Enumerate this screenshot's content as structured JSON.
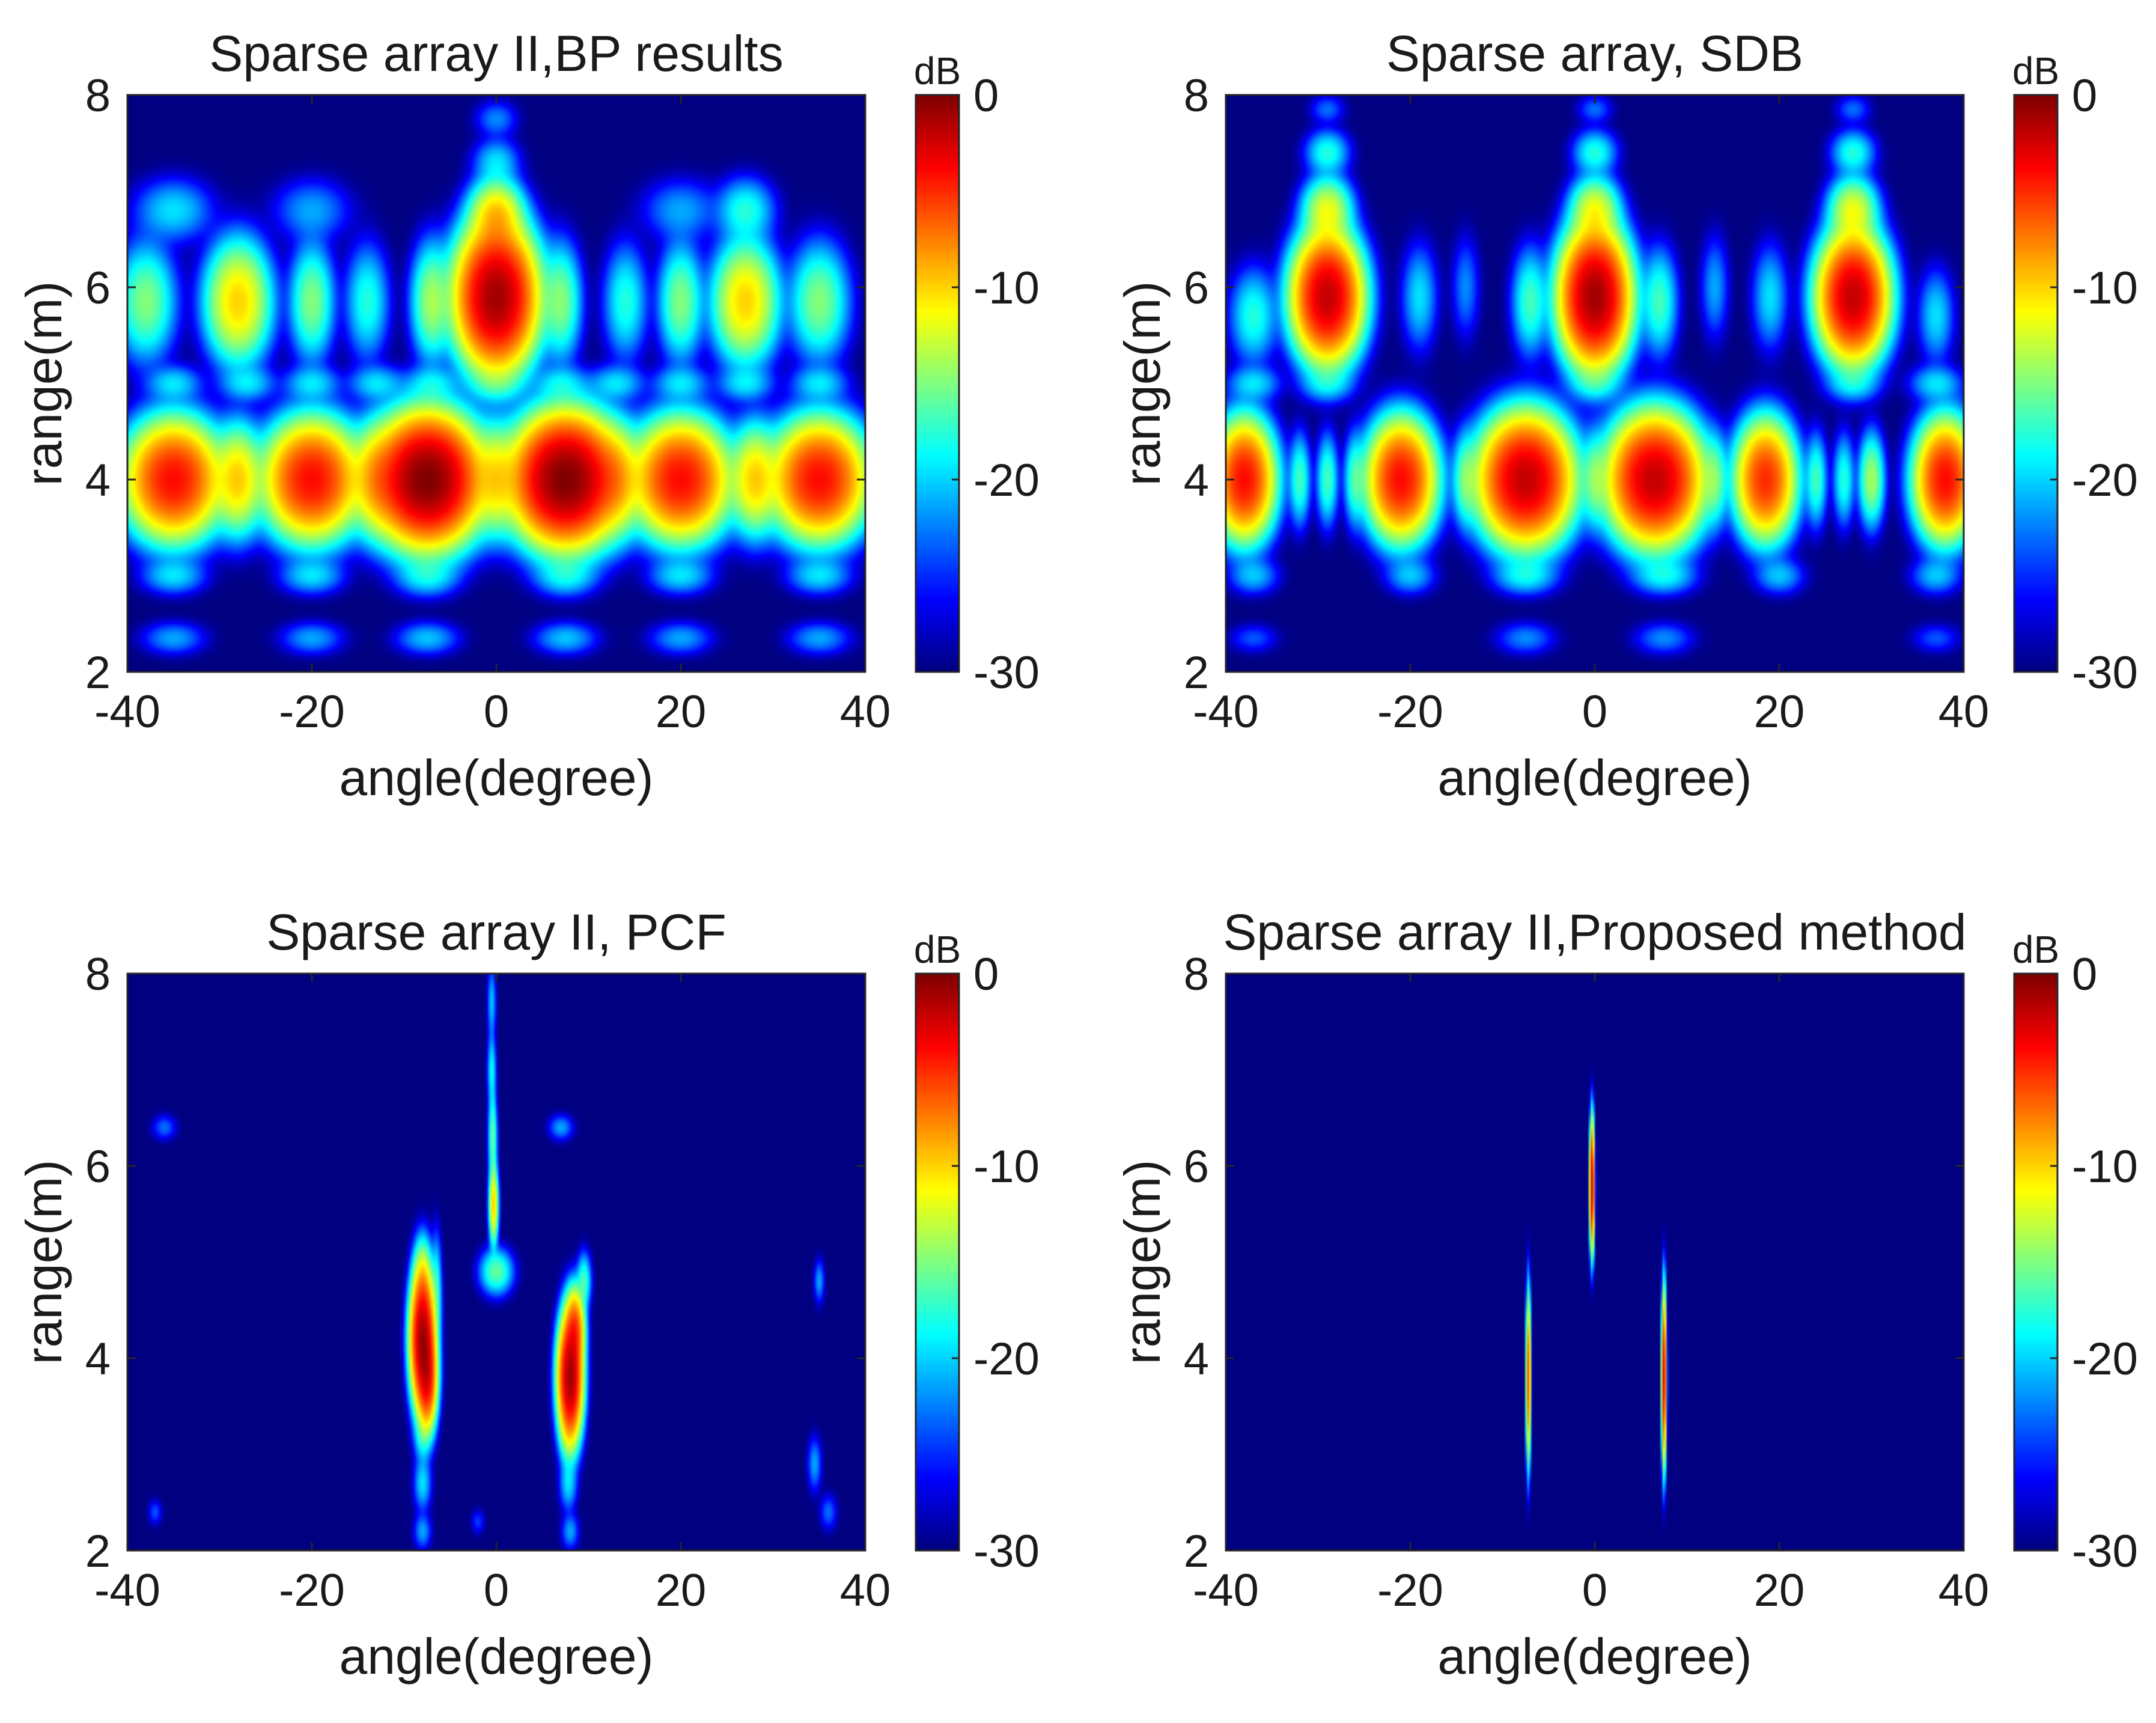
{
  "chart_data": [
    {
      "type": "heatmap",
      "title": "Sparse array II,BP results",
      "xlabel": "angle(degree)",
      "ylabel": "range(m)",
      "xlim": [
        -40,
        40
      ],
      "ylim": [
        2,
        8
      ],
      "xticks": [
        "-40",
        "-20",
        "0",
        "20",
        "40"
      ],
      "yticks": [
        "2",
        "4",
        "6",
        "8"
      ],
      "colorbar": {
        "label": "dB",
        "range": [
          -30,
          0
        ],
        "ticks": [
          "0",
          "-10",
          "-20",
          "-30"
        ],
        "colormap": "jet"
      },
      "background_db": -30,
      "spots": [
        {
          "x": -35,
          "y": 4.0,
          "db": -4,
          "sx": 2.4,
          "sy": 0.28
        },
        {
          "x": -28,
          "y": 4.0,
          "db": -10,
          "sx": 1.3,
          "sy": 0.27
        },
        {
          "x": -20,
          "y": 4.0,
          "db": -4,
          "sx": 2.4,
          "sy": 0.28
        },
        {
          "x": -13,
          "y": 4.0,
          "db": -10,
          "sx": 1.3,
          "sy": 0.27
        },
        {
          "x": -7.5,
          "y": 4.0,
          "db": 0,
          "sx": 2.6,
          "sy": 0.3
        },
        {
          "x": 0,
          "y": 4.0,
          "db": -11,
          "sx": 1.3,
          "sy": 0.27
        },
        {
          "x": 7.5,
          "y": 4.0,
          "db": 0,
          "sx": 2.6,
          "sy": 0.3
        },
        {
          "x": 13,
          "y": 4.0,
          "db": -10,
          "sx": 1.3,
          "sy": 0.27
        },
        {
          "x": 20,
          "y": 4.0,
          "db": -4,
          "sx": 2.4,
          "sy": 0.28
        },
        {
          "x": 28,
          "y": 4.0,
          "db": -10,
          "sx": 1.3,
          "sy": 0.27
        },
        {
          "x": 35,
          "y": 4.0,
          "db": -4,
          "sx": 2.4,
          "sy": 0.28
        },
        {
          "x": -38,
          "y": 5.85,
          "db": -15,
          "sx": 1.6,
          "sy": 0.3
        },
        {
          "x": -28,
          "y": 5.85,
          "db": -10,
          "sx": 1.7,
          "sy": 0.3
        },
        {
          "x": -20,
          "y": 5.85,
          "db": -15,
          "sx": 1.2,
          "sy": 0.3
        },
        {
          "x": -14,
          "y": 5.85,
          "db": -18,
          "sx": 1.2,
          "sy": 0.3
        },
        {
          "x": -7,
          "y": 5.85,
          "db": -14,
          "sx": 1.1,
          "sy": 0.3
        },
        {
          "x": 0,
          "y": 5.9,
          "db": -1,
          "sx": 2.0,
          "sy": 0.34
        },
        {
          "x": 7,
          "y": 5.85,
          "db": -15,
          "sx": 1.1,
          "sy": 0.3
        },
        {
          "x": 14,
          "y": 5.85,
          "db": -18,
          "sx": 1.2,
          "sy": 0.3
        },
        {
          "x": 20,
          "y": 5.85,
          "db": -15,
          "sx": 1.2,
          "sy": 0.3
        },
        {
          "x": 27,
          "y": 5.85,
          "db": -10,
          "sx": 1.7,
          "sy": 0.3
        },
        {
          "x": 35,
          "y": 5.85,
          "db": -15,
          "sx": 1.6,
          "sy": 0.3
        },
        {
          "x": 0,
          "y": 6.75,
          "db": -10,
          "sx": 1.4,
          "sy": 0.18
        },
        {
          "x": -35,
          "y": 6.8,
          "db": -20,
          "sx": 2.2,
          "sy": 0.17
        },
        {
          "x": -20,
          "y": 6.8,
          "db": -22,
          "sx": 2.2,
          "sy": 0.17
        },
        {
          "x": 20,
          "y": 6.8,
          "db": -22,
          "sx": 2.2,
          "sy": 0.17
        },
        {
          "x": 27,
          "y": 6.8,
          "db": -18,
          "sx": 1.6,
          "sy": 0.17
        },
        {
          "x": 0,
          "y": 7.3,
          "db": -20,
          "sx": 1.3,
          "sy": 0.13
        },
        {
          "x": 0,
          "y": 7.75,
          "db": -23,
          "sx": 1.2,
          "sy": 0.1
        },
        {
          "x": -35,
          "y": 5.0,
          "db": -20,
          "sx": 1.6,
          "sy": 0.1
        },
        {
          "x": -27,
          "y": 5.0,
          "db": -20,
          "sx": 1.6,
          "sy": 0.1
        },
        {
          "x": -20,
          "y": 5.0,
          "db": -20,
          "sx": 1.6,
          "sy": 0.1
        },
        {
          "x": -13,
          "y": 5.0,
          "db": -20,
          "sx": 1.6,
          "sy": 0.1
        },
        {
          "x": -7,
          "y": 5.0,
          "db": -20,
          "sx": 1.6,
          "sy": 0.1
        },
        {
          "x": 0,
          "y": 5.0,
          "db": -20,
          "sx": 1.6,
          "sy": 0.1
        },
        {
          "x": 7,
          "y": 5.0,
          "db": -20,
          "sx": 1.6,
          "sy": 0.1
        },
        {
          "x": 13,
          "y": 5.0,
          "db": -20,
          "sx": 1.6,
          "sy": 0.1
        },
        {
          "x": 20,
          "y": 5.0,
          "db": -20,
          "sx": 1.6,
          "sy": 0.1
        },
        {
          "x": 27,
          "y": 5.0,
          "db": -20,
          "sx": 1.6,
          "sy": 0.1
        },
        {
          "x": 35,
          "y": 5.0,
          "db": -20,
          "sx": 1.6,
          "sy": 0.1
        },
        {
          "x": -35,
          "y": 3.0,
          "db": -20,
          "sx": 1.8,
          "sy": 0.1
        },
        {
          "x": -20,
          "y": 3.0,
          "db": -20,
          "sx": 1.8,
          "sy": 0.1
        },
        {
          "x": -7.5,
          "y": 3.0,
          "db": -19,
          "sx": 1.8,
          "sy": 0.11
        },
        {
          "x": 7.5,
          "y": 3.0,
          "db": -19,
          "sx": 1.8,
          "sy": 0.11
        },
        {
          "x": 20,
          "y": 3.0,
          "db": -20,
          "sx": 1.8,
          "sy": 0.1
        },
        {
          "x": 35,
          "y": 3.0,
          "db": -20,
          "sx": 1.8,
          "sy": 0.1
        },
        {
          "x": -35,
          "y": 2.35,
          "db": -22,
          "sx": 1.8,
          "sy": 0.09
        },
        {
          "x": -20,
          "y": 2.35,
          "db": -22,
          "sx": 1.8,
          "sy": 0.09
        },
        {
          "x": -7.5,
          "y": 2.35,
          "db": -21,
          "sx": 1.8,
          "sy": 0.09
        },
        {
          "x": 7.5,
          "y": 2.35,
          "db": -21,
          "sx": 1.8,
          "sy": 0.09
        },
        {
          "x": 20,
          "y": 2.35,
          "db": -22,
          "sx": 1.8,
          "sy": 0.09
        },
        {
          "x": 35,
          "y": 2.35,
          "db": -22,
          "sx": 1.8,
          "sy": 0.09
        }
      ]
    },
    {
      "type": "heatmap",
      "title": "Sparse array, SDB",
      "xlabel": "angle(degree)",
      "ylabel": "range(m)",
      "xlim": [
        -40,
        40
      ],
      "ylim": [
        2,
        8
      ],
      "xticks": [
        "-40",
        "-20",
        "0",
        "20",
        "40"
      ],
      "yticks": [
        "2",
        "4",
        "6",
        "8"
      ],
      "colorbar": {
        "label": "dB",
        "range": [
          -30,
          0
        ],
        "ticks": [
          "0",
          "-10",
          "-20",
          "-30"
        ],
        "colormap": "jet"
      },
      "background_db": -30,
      "spots": [
        {
          "x": -38,
          "y": 4.0,
          "db": -4,
          "sx": 1.5,
          "sy": 0.28
        },
        {
          "x": -21,
          "y": 4.0,
          "db": -4,
          "sx": 1.7,
          "sy": 0.28
        },
        {
          "x": -7.5,
          "y": 4.0,
          "db": -2,
          "sx": 2.3,
          "sy": 0.3
        },
        {
          "x": 6.5,
          "y": 4.0,
          "db": -2,
          "sx": 2.3,
          "sy": 0.3
        },
        {
          "x": 18.5,
          "y": 4.0,
          "db": -5,
          "sx": 1.5,
          "sy": 0.28
        },
        {
          "x": 38,
          "y": 4.0,
          "db": -4,
          "sx": 1.5,
          "sy": 0.28
        },
        {
          "x": -32,
          "y": 4.0,
          "db": -17,
          "sx": 0.6,
          "sy": 0.24
        },
        {
          "x": -29,
          "y": 4.0,
          "db": -17,
          "sx": 0.6,
          "sy": 0.24
        },
        {
          "x": -26,
          "y": 4.0,
          "db": -17,
          "sx": 0.6,
          "sy": 0.24
        },
        {
          "x": -14,
          "y": 4.0,
          "db": -16,
          "sx": 0.7,
          "sy": 0.24
        },
        {
          "x": 0,
          "y": 4.0,
          "db": -16,
          "sx": 0.7,
          "sy": 0.24
        },
        {
          "x": 13,
          "y": 4.0,
          "db": -16,
          "sx": 0.7,
          "sy": 0.24
        },
        {
          "x": 24,
          "y": 4.0,
          "db": -17,
          "sx": 0.6,
          "sy": 0.24
        },
        {
          "x": 27,
          "y": 4.0,
          "db": -18,
          "sx": 0.6,
          "sy": 0.24
        },
        {
          "x": 30,
          "y": 4.0,
          "db": -14,
          "sx": 0.7,
          "sy": 0.24
        },
        {
          "x": -29,
          "y": 5.9,
          "db": -2,
          "sx": 1.7,
          "sy": 0.3
        },
        {
          "x": 0,
          "y": 5.9,
          "db": -1,
          "sx": 1.7,
          "sy": 0.32
        },
        {
          "x": 28,
          "y": 5.9,
          "db": -2,
          "sx": 1.7,
          "sy": 0.3
        },
        {
          "x": -37,
          "y": 5.7,
          "db": -18,
          "sx": 1.3,
          "sy": 0.25
        },
        {
          "x": -19,
          "y": 5.9,
          "db": -20,
          "sx": 1.0,
          "sy": 0.28
        },
        {
          "x": -14,
          "y": 6.0,
          "db": -23,
          "sx": 0.8,
          "sy": 0.28
        },
        {
          "x": -7,
          "y": 5.85,
          "db": -17,
          "sx": 1.0,
          "sy": 0.28
        },
        {
          "x": 7,
          "y": 5.85,
          "db": -17,
          "sx": 1.0,
          "sy": 0.28
        },
        {
          "x": 13,
          "y": 6.0,
          "db": -22,
          "sx": 0.8,
          "sy": 0.28
        },
        {
          "x": 19,
          "y": 5.9,
          "db": -20,
          "sx": 1.0,
          "sy": 0.28
        },
        {
          "x": 37,
          "y": 5.7,
          "db": -20,
          "sx": 1.0,
          "sy": 0.25
        },
        {
          "x": -29,
          "y": 6.8,
          "db": -12,
          "sx": 1.3,
          "sy": 0.17
        },
        {
          "x": 0,
          "y": 6.8,
          "db": -12,
          "sx": 1.3,
          "sy": 0.17
        },
        {
          "x": 28,
          "y": 6.8,
          "db": -12,
          "sx": 1.3,
          "sy": 0.17
        },
        {
          "x": -29,
          "y": 7.4,
          "db": -18,
          "sx": 1.2,
          "sy": 0.12
        },
        {
          "x": 0,
          "y": 7.4,
          "db": -18,
          "sx": 1.2,
          "sy": 0.12
        },
        {
          "x": 28,
          "y": 7.4,
          "db": -18,
          "sx": 1.2,
          "sy": 0.12
        },
        {
          "x": -29,
          "y": 7.85,
          "db": -24,
          "sx": 1.0,
          "sy": 0.08
        },
        {
          "x": 0,
          "y": 7.85,
          "db": -24,
          "sx": 1.0,
          "sy": 0.08
        },
        {
          "x": 28,
          "y": 7.85,
          "db": -24,
          "sx": 1.0,
          "sy": 0.08
        },
        {
          "x": -37,
          "y": 5.0,
          "db": -20,
          "sx": 1.5,
          "sy": 0.1
        },
        {
          "x": -29,
          "y": 5.0,
          "db": -20,
          "sx": 1.5,
          "sy": 0.1
        },
        {
          "x": 0,
          "y": 5.0,
          "db": -20,
          "sx": 1.5,
          "sy": 0.1
        },
        {
          "x": 28,
          "y": 5.0,
          "db": -20,
          "sx": 1.5,
          "sy": 0.1
        },
        {
          "x": 37,
          "y": 5.0,
          "db": -20,
          "sx": 1.5,
          "sy": 0.1
        },
        {
          "x": -37,
          "y": 3.0,
          "db": -21,
          "sx": 1.4,
          "sy": 0.1
        },
        {
          "x": -20,
          "y": 3.0,
          "db": -21,
          "sx": 1.4,
          "sy": 0.1
        },
        {
          "x": -7.5,
          "y": 3.0,
          "db": -19,
          "sx": 1.8,
          "sy": 0.1
        },
        {
          "x": 7.5,
          "y": 3.0,
          "db": -19,
          "sx": 1.8,
          "sy": 0.1
        },
        {
          "x": 20,
          "y": 3.0,
          "db": -21,
          "sx": 1.4,
          "sy": 0.1
        },
        {
          "x": 37,
          "y": 3.0,
          "db": -21,
          "sx": 1.4,
          "sy": 0.1
        },
        {
          "x": -7.5,
          "y": 2.35,
          "db": -23,
          "sx": 1.7,
          "sy": 0.09
        },
        {
          "x": 7.5,
          "y": 2.35,
          "db": -23,
          "sx": 1.7,
          "sy": 0.09
        },
        {
          "x": -37,
          "y": 2.35,
          "db": -25,
          "sx": 1.4,
          "sy": 0.08
        },
        {
          "x": 37,
          "y": 2.35,
          "db": -25,
          "sx": 1.4,
          "sy": 0.08
        }
      ]
    },
    {
      "type": "heatmap",
      "title": "Sparse array II, PCF",
      "xlabel": "angle(degree)",
      "ylabel": "range(m)",
      "xlim": [
        -40,
        40
      ],
      "ylim": [
        2,
        8
      ],
      "xticks": [
        "-40",
        "-20",
        "0",
        "20",
        "40"
      ],
      "yticks": [
        "2",
        "4",
        "6",
        "8"
      ],
      "colorbar": {
        "label": "dB",
        "range": [
          -30,
          0
        ],
        "ticks": [
          "0",
          "-10",
          "-20",
          "-30"
        ],
        "colormap": "jet"
      },
      "background_db": -30,
      "spots": [
        {
          "x": -8,
          "y": 4.2,
          "db": -1,
          "sx": 0.6,
          "sy": 0.32
        },
        {
          "x": -7.5,
          "y": 3.8,
          "db": -4,
          "sx": 0.5,
          "sy": 0.25
        },
        {
          "x": -8,
          "y": 4.8,
          "db": -13,
          "sx": 0.5,
          "sy": 0.22
        },
        {
          "x": -6.5,
          "y": 4.7,
          "db": -18,
          "sx": 0.3,
          "sy": 0.3
        },
        {
          "x": -8,
          "y": 3.2,
          "db": -19,
          "sx": 0.5,
          "sy": 0.15
        },
        {
          "x": -8,
          "y": 2.7,
          "db": -20,
          "sx": 0.5,
          "sy": 0.15
        },
        {
          "x": -8,
          "y": 2.2,
          "db": -22,
          "sx": 0.5,
          "sy": 0.1
        },
        {
          "x": 8,
          "y": 3.8,
          "db": -1,
          "sx": 0.6,
          "sy": 0.3
        },
        {
          "x": 8.5,
          "y": 4.3,
          "db": -6,
          "sx": 0.5,
          "sy": 0.2
        },
        {
          "x": 9.5,
          "y": 4.8,
          "db": -17,
          "sx": 0.4,
          "sy": 0.15
        },
        {
          "x": 7.8,
          "y": 3.2,
          "db": -19,
          "sx": 0.5,
          "sy": 0.15
        },
        {
          "x": 7.8,
          "y": 2.7,
          "db": -20,
          "sx": 0.5,
          "sy": 0.15
        },
        {
          "x": 8,
          "y": 2.2,
          "db": -22,
          "sx": 0.5,
          "sy": 0.1
        },
        {
          "x": 7,
          "y": 6.4,
          "db": -22,
          "sx": 0.7,
          "sy": 0.07
        },
        {
          "x": 0,
          "y": 4.9,
          "db": -16,
          "sx": 0.9,
          "sy": 0.12
        },
        {
          "x": -0.3,
          "y": 5.6,
          "db": -10,
          "sx": 0.25,
          "sy": 0.2
        },
        {
          "x": -0.4,
          "y": 6.3,
          "db": -16,
          "sx": 0.25,
          "sy": 0.25
        },
        {
          "x": -0.5,
          "y": 7.0,
          "db": -19,
          "sx": 0.25,
          "sy": 0.2
        },
        {
          "x": -0.5,
          "y": 7.7,
          "db": -21,
          "sx": 0.25,
          "sy": 0.2
        },
        {
          "x": -36,
          "y": 6.4,
          "db": -24,
          "sx": 0.7,
          "sy": 0.07
        },
        {
          "x": -37,
          "y": 2.4,
          "db": -25,
          "sx": 0.4,
          "sy": 0.07
        },
        {
          "x": -2,
          "y": 2.3,
          "db": -26,
          "sx": 0.4,
          "sy": 0.07
        },
        {
          "x": 35,
          "y": 4.8,
          "db": -22,
          "sx": 0.3,
          "sy": 0.12
        },
        {
          "x": 34.5,
          "y": 2.9,
          "db": -22,
          "sx": 0.4,
          "sy": 0.15
        },
        {
          "x": 36,
          "y": 2.4,
          "db": -24,
          "sx": 0.5,
          "sy": 0.1
        }
      ]
    },
    {
      "type": "heatmap",
      "title": "Sparse array II,Proposed method",
      "xlabel": "angle(degree)",
      "ylabel": "range(m)",
      "xlim": [
        -40,
        40
      ],
      "ylim": [
        2,
        8
      ],
      "xticks": [
        "-40",
        "-20",
        "0",
        "20",
        "40"
      ],
      "yticks": [
        "2",
        "4",
        "6",
        "8"
      ],
      "colorbar": {
        "label": "dB",
        "range": [
          -30,
          0
        ],
        "ticks": [
          "0",
          "-10",
          "-20",
          "-30"
        ],
        "colormap": "jet"
      },
      "background_db": -30,
      "spots": [
        {
          "x": -0.3,
          "y": 5.8,
          "db": -2,
          "sx": 0.12,
          "sy": 0.3
        },
        {
          "x": -7.2,
          "y": 3.8,
          "db": -6,
          "sx": 0.12,
          "sy": 0.4
        },
        {
          "x": 7.5,
          "y": 3.8,
          "db": -3,
          "sx": 0.12,
          "sy": 0.4
        }
      ]
    }
  ]
}
